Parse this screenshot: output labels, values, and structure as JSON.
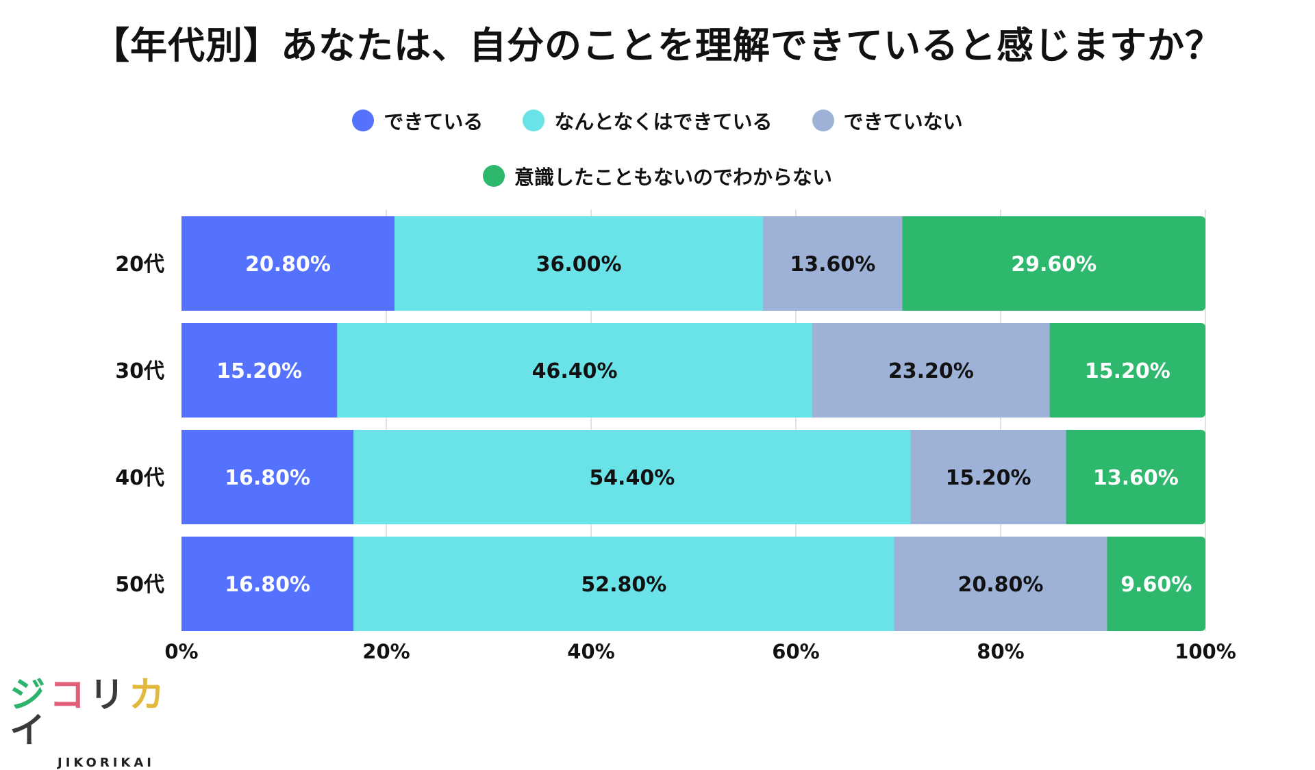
{
  "title": "【年代別】あなたは、自分のことを理解できていると感じますか？",
  "logo": {
    "mark": [
      "ジ",
      "コ",
      "リ",
      "カ",
      "イ"
    ],
    "sub": "JIKORIKAI"
  },
  "chart_data": {
    "type": "bar",
    "orientation": "horizontal",
    "stacked": true,
    "title": "【年代別】あなたは、自分のことを理解できていると感じますか？",
    "categories": [
      "20代",
      "30代",
      "40代",
      "50代"
    ],
    "series": [
      {
        "name": "できている",
        "color": "#5572ff",
        "label_color": "#ffffff",
        "values": [
          20.8,
          15.2,
          16.8,
          16.8
        ],
        "labels": [
          "20.80%",
          "15.20%",
          "16.80%",
          "16.80%"
        ]
      },
      {
        "name": "なんとなくはできている",
        "color": "#6ae3e8",
        "label_color": "#111111",
        "values": [
          36.0,
          46.4,
          54.4,
          52.8
        ],
        "labels": [
          "36.00%",
          "46.40%",
          "54.40%",
          "52.80%"
        ]
      },
      {
        "name": "できていない",
        "color": "#9db2d6",
        "label_color": "#111111",
        "values": [
          13.6,
          23.2,
          15.2,
          20.8
        ],
        "labels": [
          "13.60%",
          "23.20%",
          "15.20%",
          "20.80%"
        ]
      },
      {
        "name": "意識したこともないのでわからない",
        "color": "#2db86e",
        "label_color": "#ffffff",
        "values": [
          29.6,
          15.2,
          13.6,
          9.6
        ],
        "labels": [
          "29.60%",
          "15.20%",
          "13.60%",
          "9.60%"
        ]
      }
    ],
    "xlim": [
      0,
      100
    ],
    "xticks": [
      0,
      20,
      40,
      60,
      80,
      100
    ],
    "xtick_labels": [
      "0%",
      "20%",
      "40%",
      "60%",
      "80%",
      "100%"
    ],
    "grid": true,
    "legend": "top-center"
  }
}
